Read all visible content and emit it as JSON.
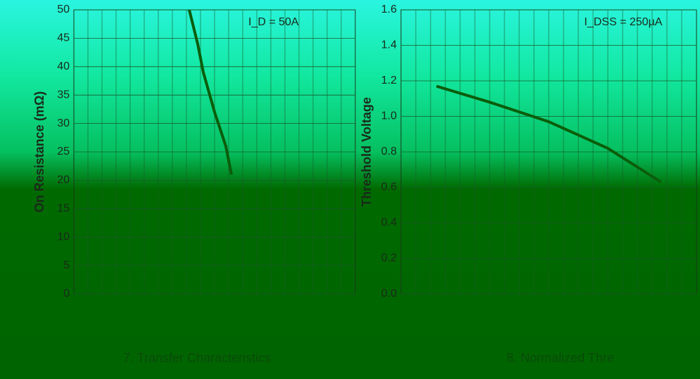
{
  "chart_data": [
    {
      "type": "line",
      "y_label": "On Resistance (mΩ)",
      "annotation": "I_D = 50A",
      "caption": "7. Transfer Characteristics",
      "x": [
        4.1,
        4.4,
        4.6,
        5.0,
        5.4,
        5.6
      ],
      "xlim": [
        0,
        10
      ],
      "series": [
        {
          "color": "#0b5d0b",
          "values": [
            50,
            44,
            39,
            32,
            26,
            21
          ]
        }
      ],
      "ylim": [
        0,
        50
      ],
      "yticks": [
        0,
        5,
        10,
        15,
        20,
        25,
        30,
        35,
        40,
        45,
        50
      ],
      "grid": true
    },
    {
      "type": "line",
      "y_label": "Threshold Voltage",
      "annotation": "I_DSS = 250µA",
      "caption": "8. Normalized Thre",
      "x": [
        1.2,
        3,
        5,
        7,
        8.8
      ],
      "xlim": [
        0,
        10
      ],
      "series": [
        {
          "color": "#0b5d0b",
          "values": [
            1.17,
            1.08,
            0.97,
            0.82,
            0.63
          ]
        }
      ],
      "ylim": [
        0,
        1.6
      ],
      "yticks": [
        {
          "value": 0,
          "label": "0.0"
        },
        0.2,
        0.4,
        0.6,
        0.8,
        {
          "value": 1,
          "label": "1.0"
        },
        1.2,
        1.4,
        1.6
      ],
      "grid": true
    }
  ]
}
